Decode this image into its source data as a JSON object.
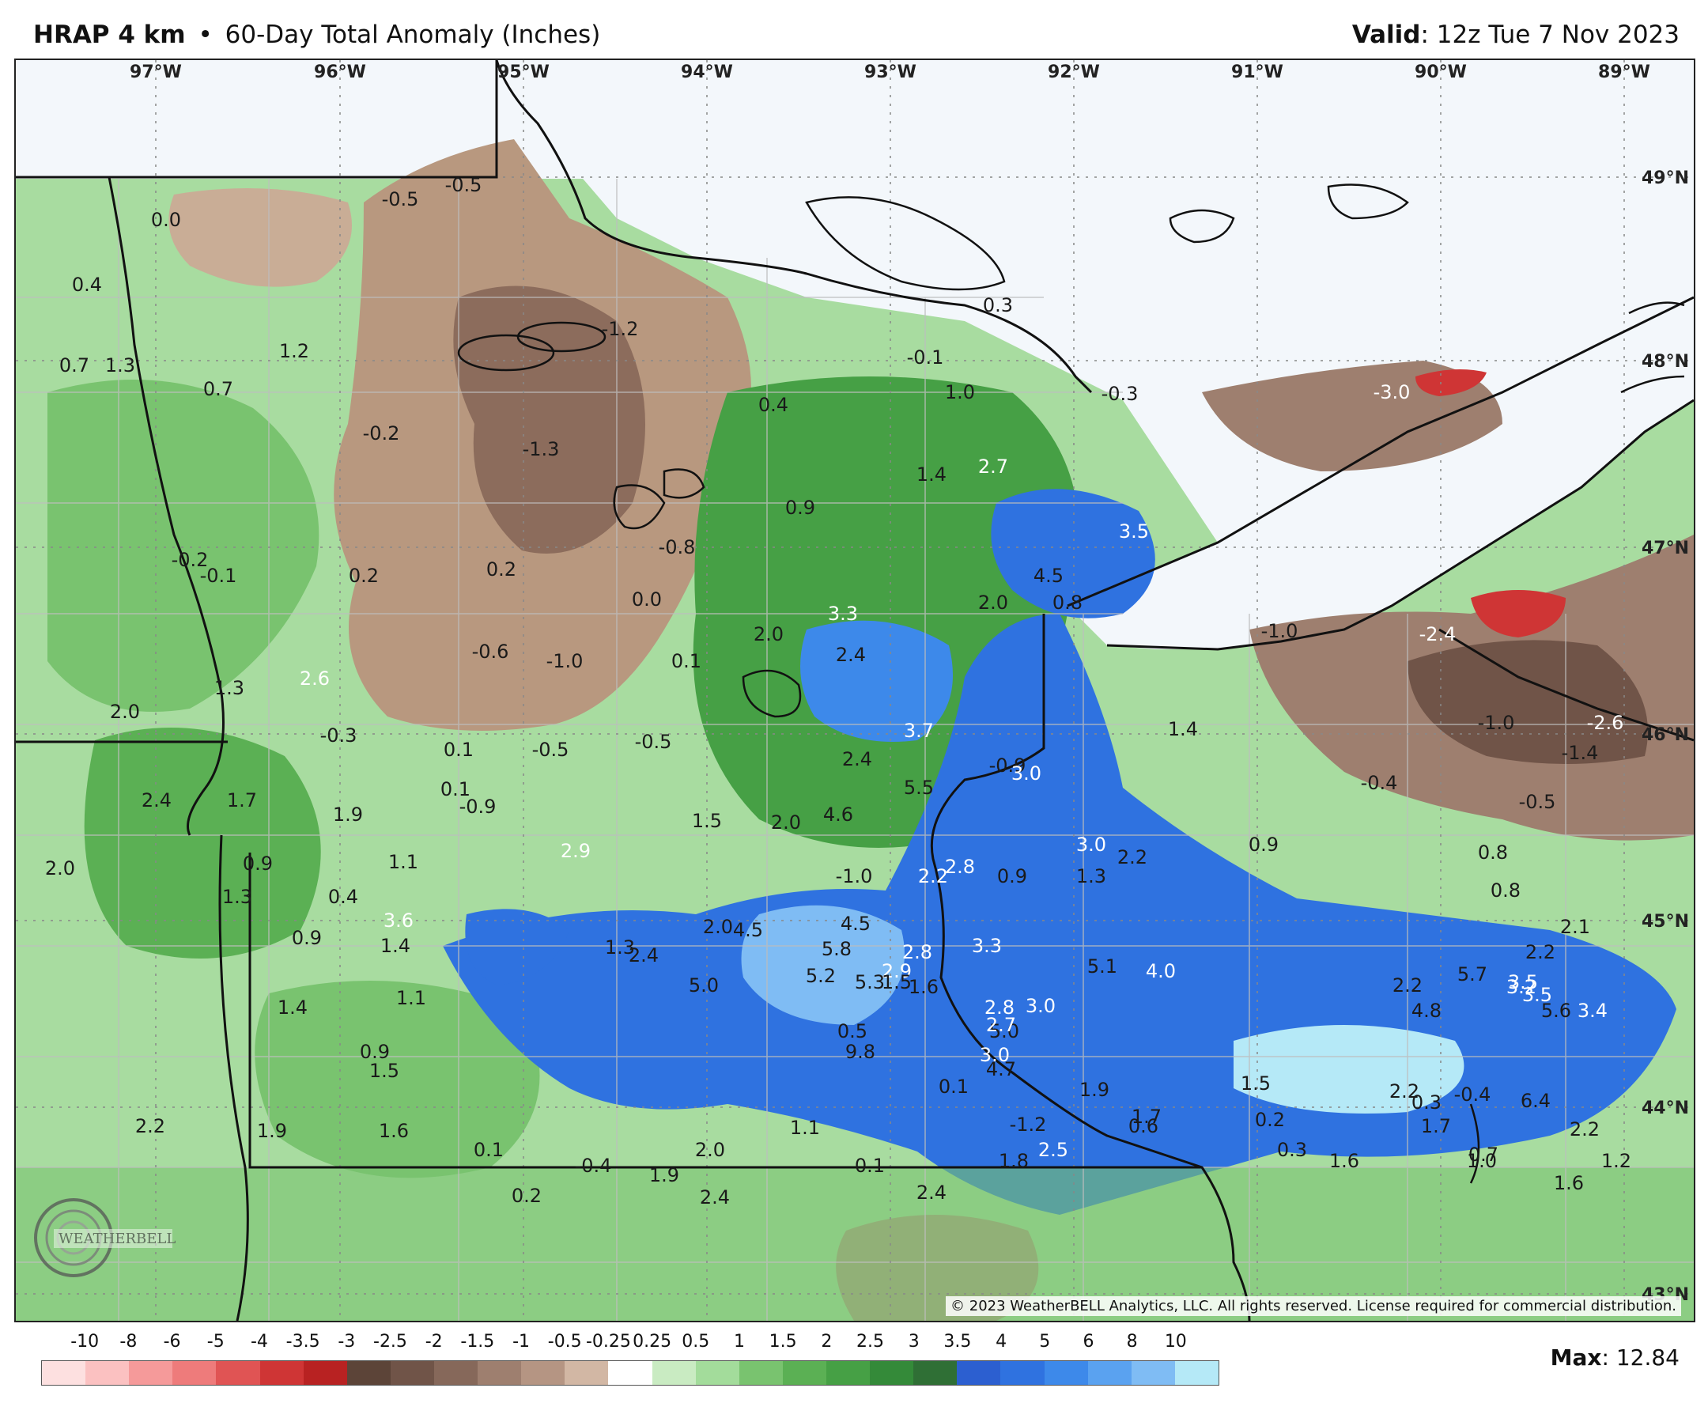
{
  "header": {
    "product": "HRAP 4 km",
    "separator": "•",
    "field": "60-Day Total Anomaly (Inches)",
    "valid_label": "Valid",
    "valid_time": ": 12z Tue 7 Nov 2023"
  },
  "map": {
    "longitude_labels": [
      "97°W",
      "96°W",
      "95°W",
      "94°W",
      "93°W",
      "92°W",
      "91°W",
      "90°W",
      "89°W"
    ],
    "latitude_labels": [
      "49°N",
      "48°N",
      "47°N",
      "46°N",
      "45°N",
      "44°N",
      "43°N"
    ],
    "values": [
      {
        "t": "0.0",
        "c": "dark"
      },
      {
        "t": "-0.5",
        "c": "dark"
      },
      {
        "t": "-0.5",
        "c": "dark"
      },
      {
        "t": "0.4",
        "c": "dark"
      },
      {
        "t": "1.2",
        "c": "dark"
      },
      {
        "t": "0.7",
        "c": "dark"
      },
      {
        "t": "1.3",
        "c": "dark"
      },
      {
        "t": "0.7",
        "c": "dark"
      },
      {
        "t": "-1.2",
        "c": "dark"
      },
      {
        "t": "-0.2",
        "c": "dark"
      },
      {
        "t": "-1.3",
        "c": "dark"
      },
      {
        "t": "0.4",
        "c": "dark"
      },
      {
        "t": "0.3",
        "c": "dark"
      },
      {
        "t": "-0.1",
        "c": "dark"
      },
      {
        "t": "1.0",
        "c": "dark"
      },
      {
        "t": "-0.3",
        "c": "dark"
      },
      {
        "t": "-3.0",
        "c": "light"
      },
      {
        "t": "1.4",
        "c": "dark"
      },
      {
        "t": "2.7",
        "c": "light"
      },
      {
        "t": "0.9",
        "c": "dark"
      },
      {
        "t": "-0.8",
        "c": "dark"
      },
      {
        "t": "-0.2",
        "c": "dark"
      },
      {
        "t": "-0.1",
        "c": "dark"
      },
      {
        "t": "0.2",
        "c": "dark"
      },
      {
        "t": "0.2",
        "c": "dark"
      },
      {
        "t": "0.0",
        "c": "dark"
      },
      {
        "t": "3.3",
        "c": "light"
      },
      {
        "t": "2.0",
        "c": "dark"
      },
      {
        "t": "2.0",
        "c": "dark"
      },
      {
        "t": "4.5",
        "c": "dark"
      },
      {
        "t": "0.8",
        "c": "dark"
      },
      {
        "t": "3.5",
        "c": "light"
      },
      {
        "t": "-1.0",
        "c": "dark"
      },
      {
        "t": "-2.4",
        "c": "light"
      },
      {
        "t": "-0.6",
        "c": "dark"
      },
      {
        "t": "-1.0",
        "c": "dark"
      },
      {
        "t": "0.1",
        "c": "dark"
      },
      {
        "t": "2.4",
        "c": "dark"
      },
      {
        "t": "2.6",
        "c": "light"
      },
      {
        "t": "1.3",
        "c": "dark"
      },
      {
        "t": "2.0",
        "c": "dark"
      },
      {
        "t": "-0.3",
        "c": "dark"
      },
      {
        "t": "0.1",
        "c": "dark"
      },
      {
        "t": "-0.5",
        "c": "dark"
      },
      {
        "t": "-0.5",
        "c": "dark"
      },
      {
        "t": "3.7",
        "c": "light"
      },
      {
        "t": "1.4",
        "c": "dark"
      },
      {
        "t": "-0.9",
        "c": "dark"
      },
      {
        "t": "-2.6",
        "c": "light"
      },
      {
        "t": "-1.0",
        "c": "dark"
      },
      {
        "t": "-1.4",
        "c": "dark"
      },
      {
        "t": "2.4",
        "c": "dark"
      },
      {
        "t": "3.0",
        "c": "light"
      },
      {
        "t": "1.7",
        "c": "dark"
      },
      {
        "t": "2.4",
        "c": "dark"
      },
      {
        "t": "0.1",
        "c": "dark"
      },
      {
        "t": "-0.9",
        "c": "dark"
      },
      {
        "t": "5.5",
        "c": "dark"
      },
      {
        "t": "-0.4",
        "c": "dark"
      },
      {
        "t": "-0.5",
        "c": "dark"
      },
      {
        "t": "1.9",
        "c": "dark"
      },
      {
        "t": "1.5",
        "c": "dark"
      },
      {
        "t": "2.0",
        "c": "dark"
      },
      {
        "t": "4.6",
        "c": "dark"
      },
      {
        "t": "3.0",
        "c": "light"
      },
      {
        "t": "2.2",
        "c": "dark"
      },
      {
        "t": "0.9",
        "c": "dark"
      },
      {
        "t": "0.8",
        "c": "dark"
      },
      {
        "t": "2.0",
        "c": "dark"
      },
      {
        "t": "0.9",
        "c": "dark"
      },
      {
        "t": "2.9",
        "c": "light"
      },
      {
        "t": "1.1",
        "c": "dark"
      },
      {
        "t": "1.3",
        "c": "dark"
      },
      {
        "t": "0.4",
        "c": "dark"
      },
      {
        "t": "2.8",
        "c": "light"
      },
      {
        "t": "0.8",
        "c": "dark"
      },
      {
        "t": "3.6",
        "c": "light"
      },
      {
        "t": "2.0",
        "c": "dark"
      },
      {
        "t": "4.5",
        "c": "dark"
      },
      {
        "t": "4.5",
        "c": "dark"
      },
      {
        "t": "5.8",
        "c": "dark"
      },
      {
        "t": "3.3",
        "c": "light"
      },
      {
        "t": "2.2",
        "c": "dark"
      },
      {
        "t": "2.1",
        "c": "dark"
      },
      {
        "t": "0.9",
        "c": "dark"
      },
      {
        "t": "1.4",
        "c": "dark"
      },
      {
        "t": "1.3",
        "c": "dark"
      },
      {
        "t": "2.8",
        "c": "light"
      },
      {
        "t": "5.3",
        "c": "dark"
      },
      {
        "t": "2.9",
        "c": "light"
      },
      {
        "t": "5.1",
        "c": "dark"
      },
      {
        "t": "4.0",
        "c": "light"
      },
      {
        "t": "3.2",
        "c": "light"
      },
      {
        "t": "3.5",
        "c": "light"
      },
      {
        "t": "3.5",
        "c": "light"
      },
      {
        "t": "2.4",
        "c": "dark"
      },
      {
        "t": "5.2",
        "c": "dark"
      },
      {
        "t": "5.0",
        "c": "dark"
      },
      {
        "t": "1.6",
        "c": "dark"
      },
      {
        "t": "1.5",
        "c": "dark"
      },
      {
        "t": "1.1",
        "c": "dark"
      },
      {
        "t": "5.0",
        "c": "dark"
      },
      {
        "t": "4.8",
        "c": "dark"
      },
      {
        "t": "5.7",
        "c": "dark"
      },
      {
        "t": "2.8",
        "c": "light"
      },
      {
        "t": "2.2",
        "c": "dark"
      },
      {
        "t": "2.7",
        "c": "light"
      },
      {
        "t": "5.6",
        "c": "dark"
      },
      {
        "t": "1.4",
        "c": "dark"
      },
      {
        "t": "0.5",
        "c": "dark"
      },
      {
        "t": "3.0",
        "c": "light"
      },
      {
        "t": "3.0",
        "c": "light"
      },
      {
        "t": "0.9",
        "c": "dark"
      },
      {
        "t": "9.8",
        "c": "dark"
      },
      {
        "t": "4.7",
        "c": "dark"
      },
      {
        "t": "3.4",
        "c": "light"
      },
      {
        "t": "1.5",
        "c": "dark"
      },
      {
        "t": "1.9",
        "c": "dark"
      },
      {
        "t": "0.3",
        "c": "dark"
      },
      {
        "t": "6.4",
        "c": "dark"
      },
      {
        "t": "1.5",
        "c": "dark"
      },
      {
        "t": "-0.4",
        "c": "dark"
      },
      {
        "t": "0.1",
        "c": "dark"
      },
      {
        "t": "2.2",
        "c": "dark"
      },
      {
        "t": "2.0",
        "c": "dark"
      },
      {
        "t": "2.5",
        "c": "light"
      },
      {
        "t": "1.1",
        "c": "dark"
      },
      {
        "t": "0.6",
        "c": "dark"
      },
      {
        "t": "2.2",
        "c": "dark"
      },
      {
        "t": "1.9",
        "c": "dark"
      },
      {
        "t": "1.6",
        "c": "dark"
      },
      {
        "t": "1.7",
        "c": "dark"
      },
      {
        "t": "-1.2",
        "c": "dark"
      },
      {
        "t": "1.6",
        "c": "dark"
      },
      {
        "t": "1.0",
        "c": "dark"
      },
      {
        "t": "2.2",
        "c": "dark"
      },
      {
        "t": "0.1",
        "c": "dark"
      },
      {
        "t": "0.2",
        "c": "dark"
      },
      {
        "t": "1.7",
        "c": "dark"
      },
      {
        "t": "1.8",
        "c": "dark"
      },
      {
        "t": "0.1",
        "c": "dark"
      },
      {
        "t": "-0.4",
        "c": "dark"
      },
      {
        "t": "1.9",
        "c": "dark"
      },
      {
        "t": "2.4",
        "c": "dark"
      },
      {
        "t": "2.4",
        "c": "dark"
      },
      {
        "t": "0.2",
        "c": "dark"
      },
      {
        "t": "0.3",
        "c": "dark"
      },
      {
        "t": "1.6",
        "c": "dark"
      },
      {
        "t": "1.2",
        "c": "dark"
      },
      {
        "t": "0.7",
        "c": "dark"
      },
      {
        "t": "-1.0",
        "c": "dark"
      },
      {
        "t": "2.2",
        "c": "light"
      },
      {
        "t": "0.9",
        "c": "dark"
      },
      {
        "t": "1.3",
        "c": "dark"
      }
    ]
  },
  "copyright": "© 2023 WeatherBELL Analytics, LLC. All rights reserved. License required for commercial distribution.",
  "logo_text": "WEATHERBELL",
  "legend": {
    "tick_labels": [
      "-10",
      "-8",
      "-6",
      "-5",
      "-4",
      "-3.5",
      "-3",
      "-2.5",
      "-2",
      "-1.5",
      "-1",
      "-0.5",
      "-0.25",
      "0.25",
      "0.5",
      "1",
      "1.5",
      "2",
      "2.5",
      "3",
      "3.5",
      "4",
      "5",
      "6",
      "8",
      "10"
    ],
    "colors": [
      "#fde0e0",
      "#fbc1c1",
      "#f59a9a",
      "#ee7b7b",
      "#e05454",
      "#cf3535",
      "#b82222",
      "#5c4438",
      "#705448",
      "#86685a",
      "#9e7f6f",
      "#b59583",
      "#d2b7a4",
      "#ffffff",
      "#c9ebc2",
      "#a3dc9b",
      "#79c36f",
      "#5bb054",
      "#46a045",
      "#348a39",
      "#2f6f35",
      "#2c5fd0",
      "#2f72e0",
      "#3d89ea",
      "#5aa2f0",
      "#7fbcf4",
      "#b5e9f7"
    ]
  },
  "max": {
    "label": "Max",
    "value": ": 12.84"
  }
}
